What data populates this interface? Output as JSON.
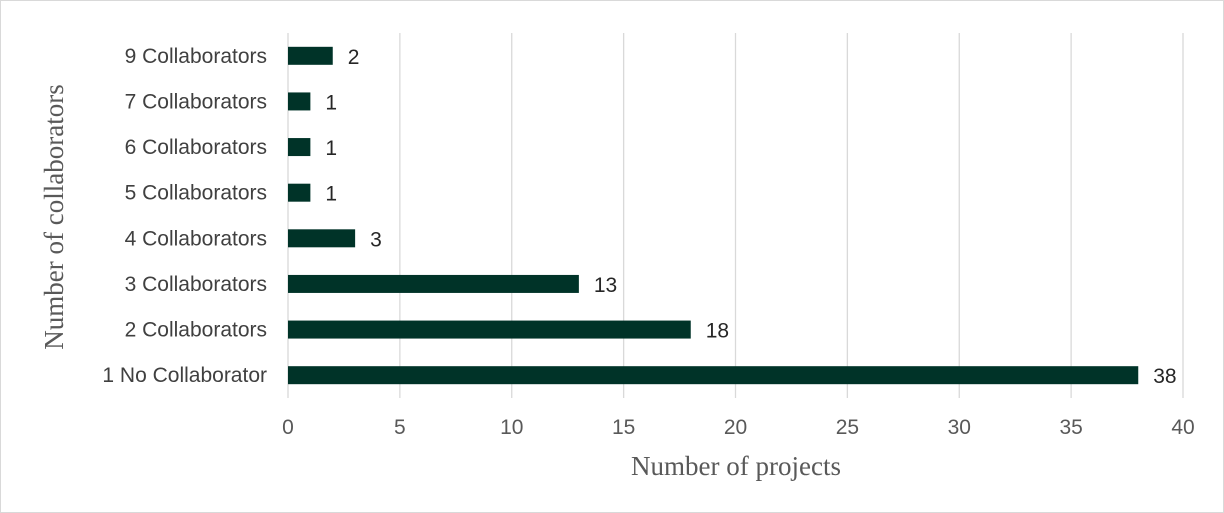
{
  "chart_data": {
    "type": "bar",
    "orientation": "horizontal",
    "categories": [
      "1 No Collaborator",
      "2 Collaborators",
      "3 Collaborators",
      "4 Collaborators",
      "5 Collaborators",
      "6 Collaborators",
      "7 Collaborators",
      "9 Collaborators"
    ],
    "values": [
      38,
      18,
      13,
      3,
      1,
      1,
      1,
      2
    ],
    "xlabel": "Number of projects",
    "ylabel": "Number of collaborators",
    "xlim": [
      0,
      40
    ],
    "xticks": [
      0,
      5,
      10,
      15,
      20,
      25,
      30,
      35,
      40
    ],
    "grid": "vertical",
    "legend": "none",
    "bar_color": "#003328"
  }
}
